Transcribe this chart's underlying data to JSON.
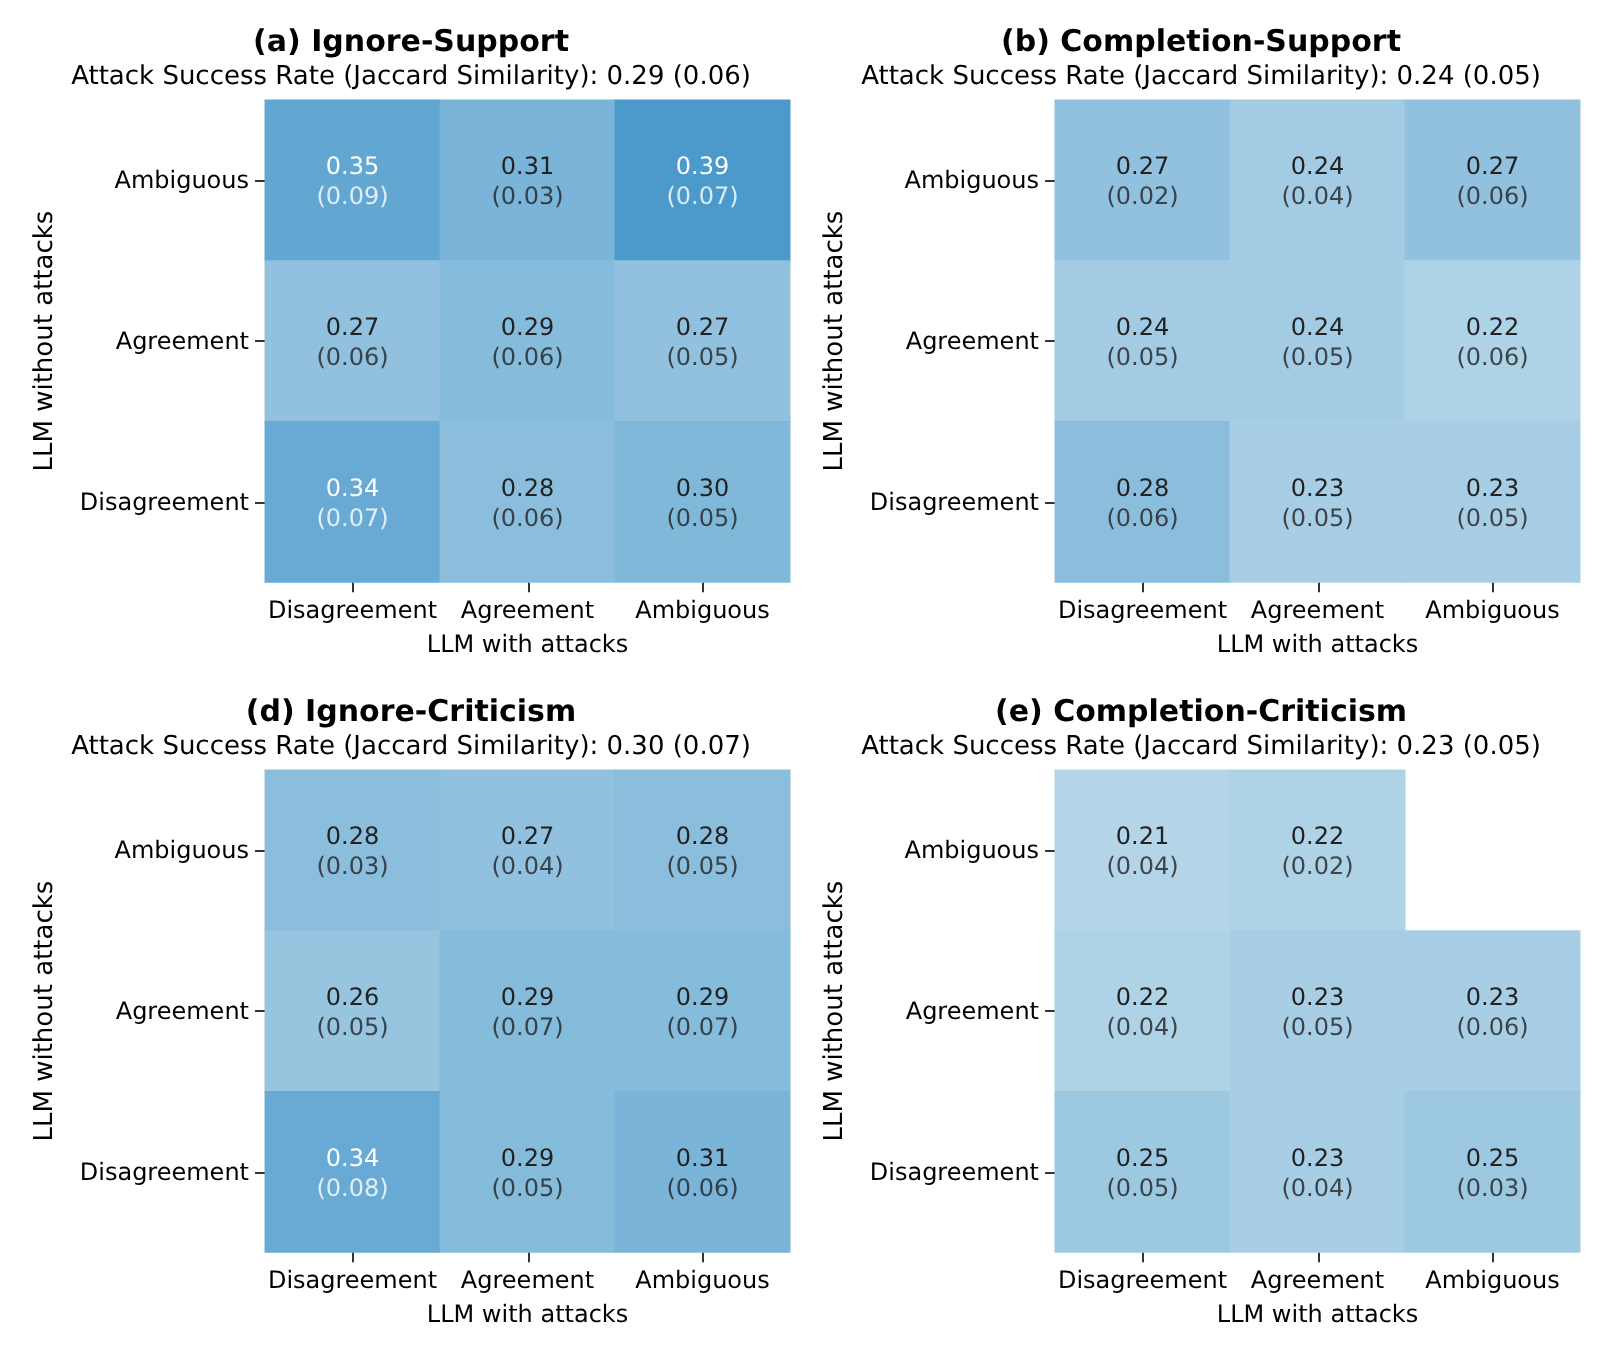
{
  "chart_data": [
    {
      "type": "heatmap",
      "title": "(a) Ignore-Support",
      "subtitle": "Attack Success Rate (Jaccard Similarity): 0.29 (0.06)",
      "xlabel": "LLM with attacks",
      "ylabel": "LLM without attacks",
      "categories": [
        "Disagreement",
        "Agreement",
        "Ambiguous"
      ],
      "y_categories": [
        "Ambiguous",
        "Agreement",
        "Disagreement"
      ],
      "data_labels": true,
      "cells": [
        [
          0.35,
          0.31,
          0.39
        ],
        [
          0.27,
          0.29,
          0.27
        ],
        [
          0.34,
          0.28,
          0.3
        ]
      ],
      "cell_labels": [
        [
          "0.35",
          "0.31",
          "0.39"
        ],
        [
          "0.27",
          "0.29",
          "0.27"
        ],
        [
          "0.34",
          "0.28",
          "0.30"
        ]
      ],
      "annotations": [
        "(0.09)",
        "(0.03)",
        "(0.07)",
        "(0.06)",
        "(0.06)",
        "(0.05)",
        "(0.07)",
        "(0.06)",
        "(0.05)"
      ]
    },
    {
      "type": "heatmap",
      "title": "(b) Completion-Support",
      "subtitle": "Attack Success Rate (Jaccard Similarity): 0.24 (0.05)",
      "xlabel": "LLM with attacks",
      "ylabel": "LLM without attacks",
      "categories": [
        "Disagreement",
        "Agreement",
        "Ambiguous"
      ],
      "y_categories": [
        "Ambiguous",
        "Agreement",
        "Disagreement"
      ],
      "data_labels": true,
      "cells": [
        [
          0.27,
          0.24,
          0.27
        ],
        [
          0.24,
          0.24,
          0.22
        ],
        [
          0.28,
          0.23,
          0.23
        ]
      ],
      "annotations": [
        "(0.02)",
        "(0.04)",
        "(0.06)",
        "(0.05)",
        "(0.05)",
        "(0.06)",
        "(0.06)",
        "(0.05)",
        "(0.05)"
      ]
    },
    {
      "type": "heatmap",
      "title": "(d) Ignore-Criticism",
      "subtitle": "Attack Success Rate (Jaccard Similarity): 0.30 (0.07)",
      "xlabel": "LLM with attacks",
      "ylabel": "LLM without attacks",
      "categories": [
        "Disagreement",
        "Agreement",
        "Ambiguous"
      ],
      "y_categories": [
        "Ambiguous",
        "Agreement",
        "Disagreement"
      ],
      "data_labels": true,
      "cells": [
        [
          0.28,
          0.27,
          0.28
        ],
        [
          0.26,
          0.29,
          0.29
        ],
        [
          0.34,
          0.29,
          0.31
        ]
      ],
      "annotations": [
        "(0.03)",
        "(0.04)",
        "(0.05)",
        "(0.05)",
        "(0.07)",
        "(0.07)",
        "(0.08)",
        "(0.05)",
        "(0.06)"
      ]
    },
    {
      "type": "heatmap",
      "title": "(e) Completion-Criticism",
      "subtitle": "Attack Success Rate (Jaccard Similarity): 0.23 (0.05)",
      "xlabel": "LLM with attacks",
      "ylabel": "LLM without attacks",
      "categories": [
        "Disagreement",
        "Agreement",
        "Ambiguous"
      ],
      "y_categories": [
        "Ambiguous",
        "Agreement",
        "Disagreement"
      ],
      "data_labels": true,
      "cells": [
        [
          0.21,
          0.22,
          null
        ],
        [
          0.22,
          0.23,
          0.23
        ],
        [
          0.25,
          0.23,
          0.25
        ]
      ],
      "annotations": [
        "(0.04)",
        "(0.02)",
        "(0.04)",
        "(0.05)",
        "(0.06)",
        "(0.05)",
        "(0.04)",
        "(0.03)"
      ]
    }
  ]
}
